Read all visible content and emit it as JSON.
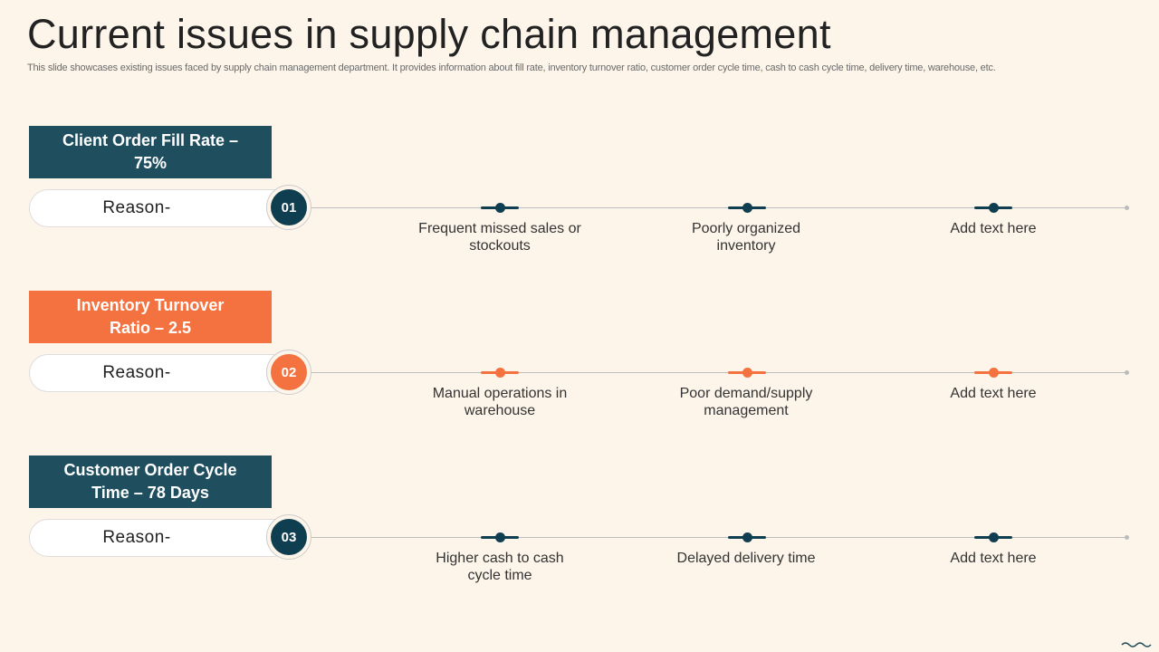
{
  "title": "Current issues in supply chain management",
  "subtitle": "This slide showcases existing issues faced by supply chain management department. It provides information about fill rate, inventory turnover ratio, customer order cycle time, cash to cash cycle time, delivery time, warehouse, etc.",
  "colors": {
    "teal": "#1f4e5f",
    "orange": "#f4723f",
    "dark_dot": "#0f3e50",
    "background": "#fdf5ea"
  },
  "rows": [
    {
      "metric": "Client Order Fill Rate – 75%",
      "reason_label": "Reason-",
      "number": "01",
      "reasons": [
        "Frequent missed sales or stockouts",
        "Poorly organized inventory",
        "Add text here"
      ]
    },
    {
      "metric": "Inventory Turnover Ratio – 2.5",
      "reason_label": "Reason-",
      "number": "02",
      "reasons": [
        "Manual operations in warehouse",
        "Poor demand/supply management",
        "Add text here"
      ]
    },
    {
      "metric": "Customer Order Cycle Time – 78 Days",
      "reason_label": "Reason-",
      "number": "03",
      "reasons": [
        "Higher cash to cash cycle time",
        "Delayed delivery time",
        "Add text here"
      ]
    }
  ]
}
